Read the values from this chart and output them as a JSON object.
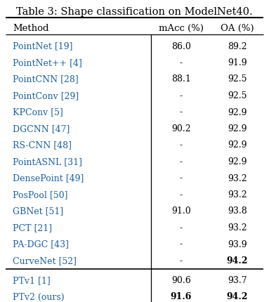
{
  "title": "Table 3: Shape classification on ModelNet40.",
  "columns": [
    "Method",
    "mAcc (%)",
    "OA (%)"
  ],
  "rows": [
    [
      "PointNet [19]",
      "86.0",
      "89.2"
    ],
    [
      "PointNet++ [4]",
      "-",
      "91.9"
    ],
    [
      "PointCNN [28]",
      "88.1",
      "92.5"
    ],
    [
      "PointConv [29]",
      "-",
      "92.5"
    ],
    [
      "KPConv [5]",
      "-",
      "92.9"
    ],
    [
      "DGCNN [47]",
      "90.2",
      "92.9"
    ],
    [
      "RS-CNN [48]",
      "-",
      "92.9"
    ],
    [
      "PointASNL [31]",
      "-",
      "92.9"
    ],
    [
      "DensePoint [49]",
      "-",
      "93.2"
    ],
    [
      "PosPool [50]",
      "-",
      "93.2"
    ],
    [
      "GBNet [51]",
      "91.0",
      "93.8"
    ],
    [
      "PCT [21]",
      "-",
      "93.2"
    ],
    [
      "PA-DGC [43]",
      "-",
      "93.9"
    ],
    [
      "CurveNet [52]",
      "-",
      "94.2"
    ]
  ],
  "rows_bold": [
    [
      false,
      false,
      false
    ],
    [
      false,
      false,
      false
    ],
    [
      false,
      false,
      false
    ],
    [
      false,
      false,
      false
    ],
    [
      false,
      false,
      false
    ],
    [
      false,
      false,
      false
    ],
    [
      false,
      false,
      false
    ],
    [
      false,
      false,
      false
    ],
    [
      false,
      false,
      false
    ],
    [
      false,
      false,
      false
    ],
    [
      false,
      false,
      false
    ],
    [
      false,
      false,
      false
    ],
    [
      false,
      false,
      false
    ],
    [
      false,
      false,
      true
    ]
  ],
  "sep_rows": [
    [
      "PTv1 [1]",
      "90.6",
      "93.7"
    ],
    [
      "PTv2 (ours)",
      "91.6",
      "94.2"
    ]
  ],
  "sep_rows_bold": [
    [
      false,
      false,
      false
    ],
    [
      false,
      true,
      true
    ]
  ],
  "method_color": "#2060a0",
  "text_color": "#000000",
  "bg_color": "#ffffff",
  "title_fontsize": 10.5,
  "header_fontsize": 9.5,
  "body_fontsize": 9.0,
  "figwidth": 3.83,
  "figheight": 4.31,
  "dpi": 100
}
